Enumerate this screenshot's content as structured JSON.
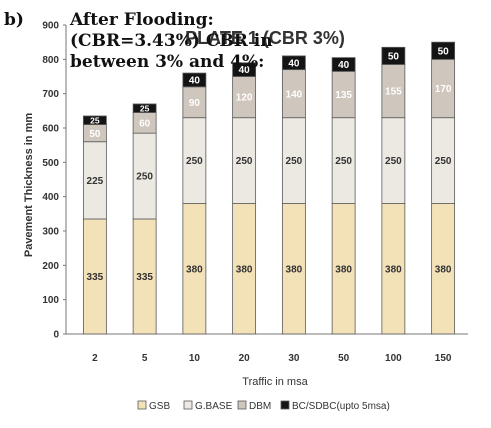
{
  "heading": {
    "label": "b)",
    "line1": "After Flooding:",
    "line2": "(CBR=3.43%) CBR in",
    "line3": "between 3% and 4%:"
  },
  "colors": {
    "gsb": "#f3e2b8",
    "gbase": "#ece9e2",
    "dbm": "#cfc6bd",
    "bc": "#141414",
    "outline": "#5a5a5a",
    "text_dark": "#333333"
  },
  "chart_data": {
    "type": "bar",
    "stacked": true,
    "title": "PLATE 1    (CBR 3%)",
    "xlabel": "Traffic in msa",
    "ylabel": "Pavement Thickness in mm",
    "ylim": [
      0,
      900
    ],
    "yticks": [
      0,
      100,
      200,
      300,
      400,
      500,
      600,
      700,
      800,
      900
    ],
    "grid": false,
    "legend_position": "bottom",
    "categories": [
      "2",
      "5",
      "10",
      "20",
      "30",
      "50",
      "100",
      "150"
    ],
    "series": [
      {
        "name": "GSB",
        "color_key": "gsb",
        "label_color": "#333333",
        "values": [
          335,
          335,
          380,
          380,
          380,
          380,
          380,
          380
        ]
      },
      {
        "name": "G.BASE",
        "color_key": "gbase",
        "label_color": "#333333",
        "values": [
          225,
          250,
          250,
          250,
          250,
          250,
          250,
          250
        ]
      },
      {
        "name": "DBM",
        "color_key": "dbm",
        "label_color": "#ffffff",
        "values": [
          50,
          60,
          90,
          120,
          140,
          135,
          155,
          170
        ]
      },
      {
        "name": "BC/SDBC(upto 5msa)",
        "color_key": "bc",
        "label_color": "#ffffff",
        "values": [
          25,
          25,
          40,
          40,
          40,
          40,
          50,
          50
        ]
      }
    ]
  }
}
